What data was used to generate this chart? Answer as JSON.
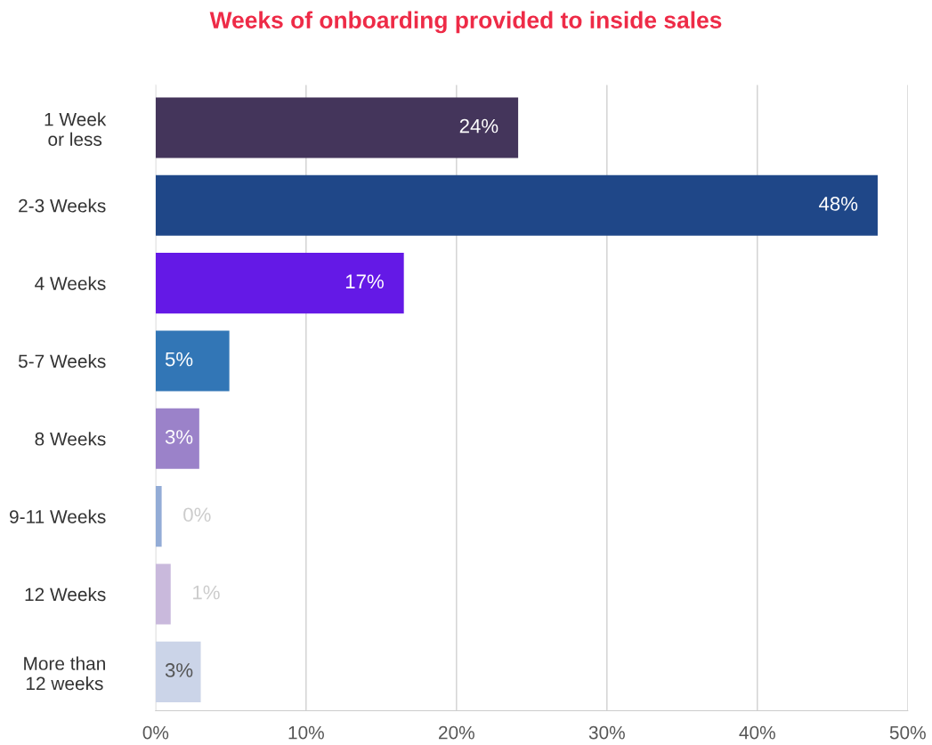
{
  "chart_data": {
    "type": "bar",
    "orientation": "horizontal",
    "title": "Weeks of onboarding provided to inside sales",
    "categories": [
      "1 Week\nor less",
      "2-3 Weeks",
      "4 Weeks",
      "5-7 Weeks",
      "8 Weeks",
      "9-11 Weeks",
      "12 Weeks",
      "More than\n12 weeks"
    ],
    "values": [
      24.1,
      48,
      16.5,
      4.9,
      2.9,
      0.4,
      1,
      3
    ],
    "value_labels": [
      "24%",
      "48%",
      "17%",
      "5%",
      "3%",
      "0%",
      "1%",
      "3%"
    ],
    "colors": [
      "#44355b",
      "#1f4788",
      "#6419e6",
      "#3276b6",
      "#9b82c9",
      "#93acd6",
      "#c9b9dc",
      "#cbd4e8"
    ],
    "xlim": [
      0,
      50
    ],
    "xticks": [
      {
        "value": 0,
        "label": "0%"
      },
      {
        "value": 10,
        "label": "10%"
      },
      {
        "value": 20,
        "label": "20%"
      },
      {
        "value": 30,
        "label": "30%"
      },
      {
        "value": 40,
        "label": "40%"
      },
      {
        "value": 50,
        "label": "50%"
      }
    ],
    "grid": "x",
    "legend": false
  }
}
